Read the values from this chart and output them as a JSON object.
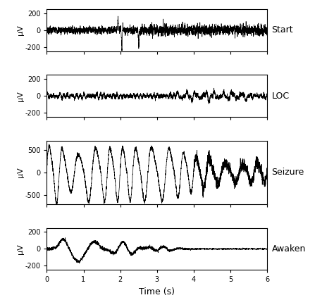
{
  "panels": [
    {
      "label": "Start",
      "ylim": [
        -250,
        250
      ],
      "yticks": [
        -200,
        0,
        200
      ],
      "ylabel": "μV",
      "signal_type": "start"
    },
    {
      "label": "LOC",
      "ylim": [
        -250,
        250
      ],
      "yticks": [
        -200,
        0,
        200
      ],
      "ylabel": "μV",
      "signal_type": "loc"
    },
    {
      "label": "Seizure",
      "ylim": [
        -700,
        700
      ],
      "yticks": [
        -500,
        0,
        500
      ],
      "ylabel": "μV",
      "signal_type": "seizure"
    },
    {
      "label": "Awaken",
      "ylim": [
        -250,
        250
      ],
      "yticks": [
        -200,
        0,
        200
      ],
      "ylabel": "μV",
      "signal_type": "awaken"
    }
  ],
  "xlim": [
    0,
    6
  ],
  "xticks": [
    0,
    1,
    2,
    3,
    4,
    5,
    6
  ],
  "xlabel": "Time (s)",
  "line_color": "black",
  "line_width": 0.5,
  "fs": 500,
  "duration": 6.0,
  "face_color": "white",
  "axes_face_color": "white"
}
